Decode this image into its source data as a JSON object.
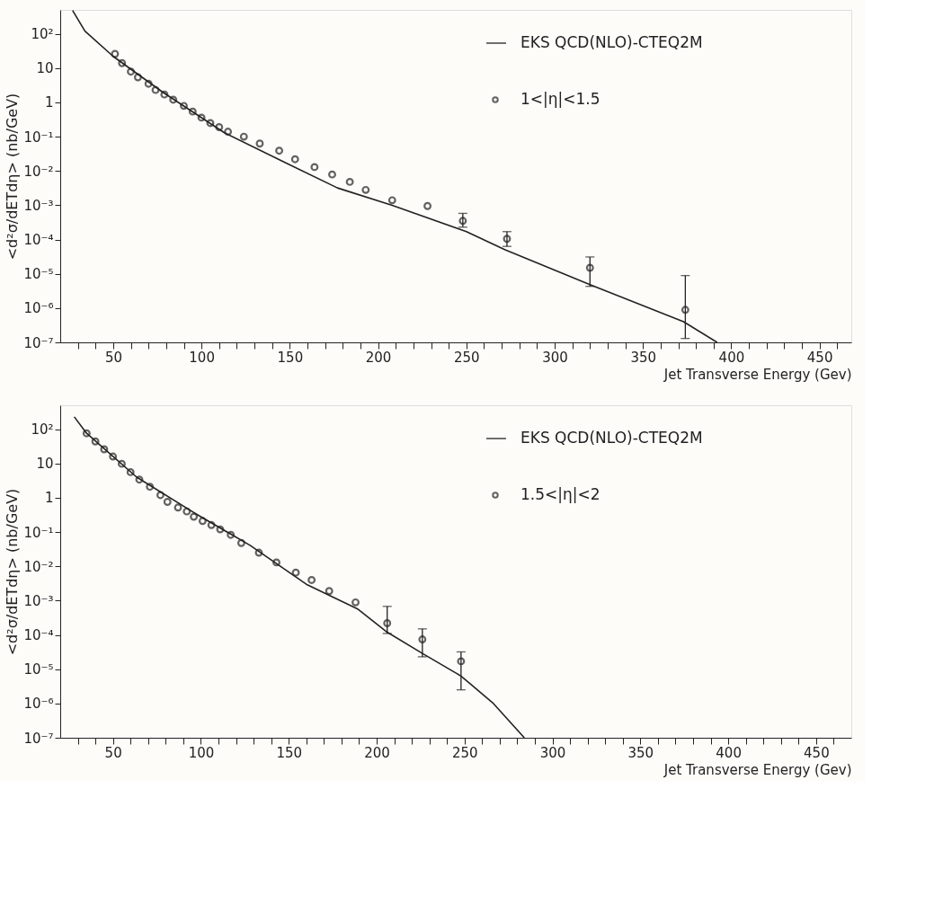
{
  "chart_data": [
    {
      "type": "scatter",
      "xlabel": "Jet Transverse Energy (Gev)",
      "ylabel": "<d²σ/dETdη>  (nb/GeV)",
      "log": "y",
      "grid": false,
      "legend": "top right",
      "xlim": [
        20,
        468
      ],
      "ylim": [
        1e-07,
        500
      ],
      "xticks": [
        {
          "value": 30,
          "label": null
        },
        {
          "value": 40,
          "label": null
        },
        50,
        {
          "value": 60,
          "label": null
        },
        {
          "value": 70,
          "label": null
        },
        {
          "value": 80,
          "label": null
        },
        {
          "value": 90,
          "label": null
        },
        100,
        {
          "value": 110,
          "label": null
        },
        {
          "value": 120,
          "label": null
        },
        {
          "value": 130,
          "label": null
        },
        {
          "value": 140,
          "label": null
        },
        150,
        {
          "value": 160,
          "label": null
        },
        {
          "value": 170,
          "label": null
        },
        {
          "value": 180,
          "label": null
        },
        {
          "value": 190,
          "label": null
        },
        200,
        {
          "value": 210,
          "label": null
        },
        {
          "value": 220,
          "label": null
        },
        {
          "value": 230,
          "label": null
        },
        {
          "value": 240,
          "label": null
        },
        250,
        {
          "value": 260,
          "label": null
        },
        {
          "value": 270,
          "label": null
        },
        {
          "value": 280,
          "label": null
        },
        {
          "value": 290,
          "label": null
        },
        300,
        {
          "value": 310,
          "label": null
        },
        {
          "value": 320,
          "label": null
        },
        {
          "value": 330,
          "label": null
        },
        {
          "value": 340,
          "label": null
        },
        350,
        {
          "value": 360,
          "label": null
        },
        {
          "value": 370,
          "label": null
        },
        {
          "value": 380,
          "label": null
        },
        {
          "value": 390,
          "label": null
        },
        400,
        {
          "value": 410,
          "label": null
        },
        {
          "value": 420,
          "label": null
        },
        {
          "value": 430,
          "label": null
        },
        {
          "value": 440,
          "label": null
        },
        450,
        {
          "value": 460,
          "label": null
        }
      ],
      "yticks": [
        {
          "value": 1e-07,
          "label": "10⁻⁷"
        },
        {
          "value": 1e-06,
          "label": "10⁻⁶"
        },
        {
          "value": 1e-05,
          "label": "10⁻⁵"
        },
        {
          "value": 0.0001,
          "label": "10⁻⁴"
        },
        {
          "value": 0.001,
          "label": "10⁻³"
        },
        {
          "value": 0.01,
          "label": "10⁻²"
        },
        {
          "value": 0.1,
          "label": "10⁻¹"
        },
        1,
        10,
        {
          "value": 100,
          "label": "10²"
        }
      ],
      "series": [
        {
          "name": "EKS QCD(NLO)-CTEQ2M",
          "type": "line",
          "color": "#222222",
          "x": [
            27,
            34,
            50,
            78,
            113,
            148,
            177,
            208,
            250,
            272,
            320,
            373,
            392
          ],
          "values": [
            480,
            120,
            22,
            2.0,
            0.13,
            0.017,
            0.0032,
            0.001,
            0.00017,
            5e-05,
            4.8e-06,
            4e-07,
            1e-07
          ]
        },
        {
          "name": "1<|η|<1.5",
          "color": "#222222",
          "marker": "circle",
          "x": [
            51,
            55,
            60,
            64,
            70,
            74,
            79,
            84,
            90,
            95,
            100,
            105,
            110,
            115,
            124,
            133,
            144,
            153,
            164,
            174,
            184,
            193,
            208,
            228,
            248,
            273,
            320,
            374
          ],
          "values": [
            26,
            14,
            7.9,
            5.4,
            3.5,
            2.3,
            1.7,
            1.2,
            0.79,
            0.54,
            0.36,
            0.25,
            0.19,
            0.14,
            0.1,
            0.063,
            0.039,
            0.022,
            0.013,
            0.0079,
            0.0048,
            0.0028,
            0.0014,
            0.00095,
            0.00035,
            0.000105,
            1.5e-05,
            8.9e-07
          ],
          "errors": [
            null,
            null,
            null,
            null,
            null,
            null,
            null,
            null,
            null,
            null,
            null,
            null,
            null,
            null,
            null,
            null,
            null,
            null,
            null,
            null,
            null,
            null,
            null,
            null,
            [
              0.00023,
              0.00058
            ],
            [
              6.3e-05,
              0.00017
            ],
            [
              4.3e-06,
              3.1e-05
            ],
            [
              1.3e-07,
              8.9e-06
            ]
          ]
        }
      ]
    },
    {
      "type": "scatter",
      "xlabel": "Jet Transverse Energy (Gev)",
      "ylabel": "<d²σ/dETdη>  (nb/GeV)",
      "log": "y",
      "grid": false,
      "legend": "top right",
      "xlim": [
        20,
        470
      ],
      "ylim": [
        1e-07,
        500
      ],
      "xticks": [
        {
          "value": 30,
          "label": null
        },
        {
          "value": 40,
          "label": null
        },
        50,
        {
          "value": 60,
          "label": null
        },
        {
          "value": 70,
          "label": null
        },
        {
          "value": 80,
          "label": null
        },
        {
          "value": 90,
          "label": null
        },
        100,
        {
          "value": 110,
          "label": null
        },
        {
          "value": 120,
          "label": null
        },
        {
          "value": 130,
          "label": null
        },
        {
          "value": 140,
          "label": null
        },
        150,
        {
          "value": 160,
          "label": null
        },
        {
          "value": 170,
          "label": null
        },
        {
          "value": 180,
          "label": null
        },
        {
          "value": 190,
          "label": null
        },
        200,
        {
          "value": 210,
          "label": null
        },
        {
          "value": 220,
          "label": null
        },
        {
          "value": 230,
          "label": null
        },
        {
          "value": 240,
          "label": null
        },
        250,
        {
          "value": 260,
          "label": null
        },
        {
          "value": 270,
          "label": null
        },
        {
          "value": 280,
          "label": null
        },
        {
          "value": 290,
          "label": null
        },
        300,
        {
          "value": 310,
          "label": null
        },
        {
          "value": 320,
          "label": null
        },
        {
          "value": 330,
          "label": null
        },
        {
          "value": 340,
          "label": null
        },
        350,
        {
          "value": 360,
          "label": null
        },
        {
          "value": 370,
          "label": null
        },
        {
          "value": 380,
          "label": null
        },
        {
          "value": 390,
          "label": null
        },
        400,
        {
          "value": 410,
          "label": null
        },
        {
          "value": 420,
          "label": null
        },
        {
          "value": 430,
          "label": null
        },
        {
          "value": 440,
          "label": null
        },
        450,
        {
          "value": 460,
          "label": null
        }
      ],
      "yticks": [
        {
          "value": 1e-07,
          "label": "10⁻⁷"
        },
        {
          "value": 1e-06,
          "label": "10⁻⁶"
        },
        {
          "value": 1e-05,
          "label": "10⁻⁵"
        },
        {
          "value": 0.0001,
          "label": "10⁻⁴"
        },
        {
          "value": 0.001,
          "label": "10⁻³"
        },
        {
          "value": 0.01,
          "label": "10⁻²"
        },
        {
          "value": 0.1,
          "label": "10⁻¹"
        },
        1,
        10,
        {
          "value": 100,
          "label": "10²"
        }
      ],
      "series": [
        {
          "name": "EKS QCD(NLO)-CTEQ2M",
          "type": "line",
          "color": "#222222",
          "x": [
            28,
            35,
            63.5,
            96,
            128,
            160,
            189,
            206,
            226,
            248,
            266,
            284
          ],
          "values": [
            230,
            76,
            4.0,
            0.37,
            0.041,
            0.003,
            0.00058,
            0.00012,
            2.9e-05,
            6.3e-06,
            1.05e-06,
            1e-07
          ]
        },
        {
          "name": "1.5<|η|<2",
          "color": "#222222",
          "marker": "circle",
          "x": [
            35,
            40,
            45,
            50,
            55,
            60,
            65,
            71,
            77,
            81,
            87,
            92,
            96,
            101,
            106,
            111,
            117,
            123,
            133,
            143,
            154,
            163,
            173,
            188,
            206,
            226,
            248
          ],
          "values": [
            76,
            44,
            26,
            16,
            9.8,
            5.6,
            3.4,
            2.1,
            1.2,
            0.76,
            0.52,
            0.4,
            0.28,
            0.21,
            0.16,
            0.12,
            0.083,
            0.048,
            0.025,
            0.013,
            0.0066,
            0.004,
            0.0019,
            0.00089,
            0.00022,
            7.4e-05,
            1.7e-05
          ],
          "errors": [
            null,
            null,
            null,
            null,
            null,
            null,
            null,
            null,
            null,
            null,
            null,
            null,
            null,
            null,
            null,
            null,
            null,
            null,
            null,
            null,
            null,
            null,
            null,
            null,
            [
              0.00011,
              0.00068
            ],
            [
              2.3e-05,
              0.00015
            ],
            [
              2.5e-06,
              3.2e-05
            ]
          ]
        }
      ]
    }
  ]
}
